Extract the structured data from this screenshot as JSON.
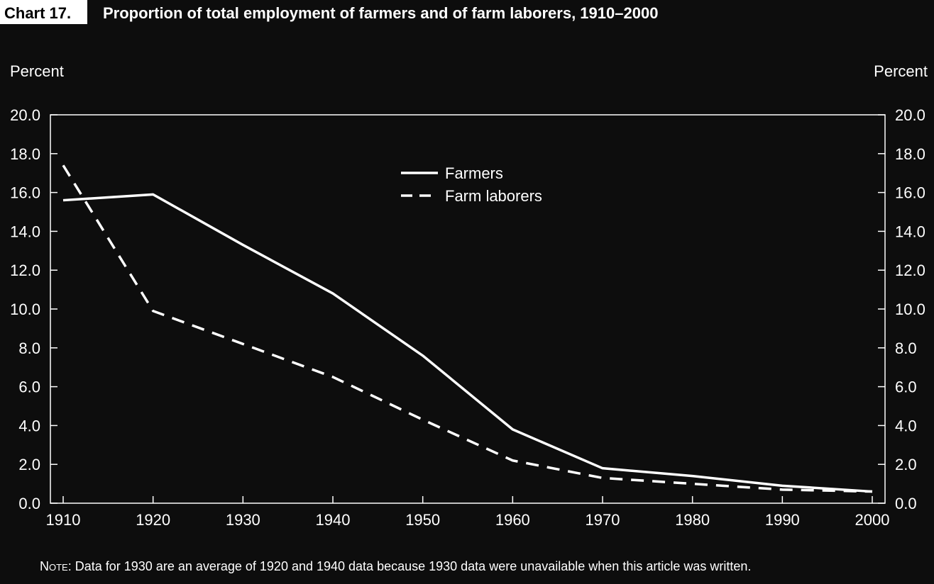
{
  "chart_label": "Chart 17.",
  "colors": {
    "background": "#0d0d0d",
    "foreground": "#ffffff"
  },
  "note": {
    "prefix": "Note",
    "text": ":  Data for 1930 are an average of 1920 and 1940 data because 1930 data were unavailable when this article was written."
  },
  "chart_data": {
    "type": "line",
    "title": "Proportion of total employment of farmers and of farm laborers, 1910–2000",
    "ylabel_left": "Percent",
    "ylabel_right": "Percent",
    "xlabel": "",
    "x": [
      1910,
      1920,
      1930,
      1940,
      1950,
      1960,
      1970,
      1980,
      1990,
      2000
    ],
    "x_tick_labels": [
      "1910",
      "1920",
      "1930",
      "1940",
      "1950",
      "1960",
      "1970",
      "1980",
      "1990",
      "2000"
    ],
    "ylim": [
      0,
      20
    ],
    "y_ticks": [
      0,
      2,
      4,
      6,
      8,
      10,
      12,
      14,
      16,
      18,
      20
    ],
    "y_tick_labels": [
      "0.0",
      "2.0",
      "4.0",
      "6.0",
      "8.0",
      "10.0",
      "12.0",
      "14.0",
      "16.0",
      "18.0",
      "20.0"
    ],
    "grid": false,
    "legend_position": "top-center",
    "series": [
      {
        "name": "Farmers",
        "style": "solid",
        "values": [
          15.6,
          15.9,
          13.3,
          10.8,
          7.6,
          3.8,
          1.8,
          1.4,
          0.9,
          0.6
        ]
      },
      {
        "name": "Farm laborers",
        "style": "dashed",
        "values": [
          17.4,
          9.9,
          8.2,
          6.5,
          4.3,
          2.2,
          1.3,
          1.0,
          0.7,
          0.6
        ]
      }
    ]
  }
}
